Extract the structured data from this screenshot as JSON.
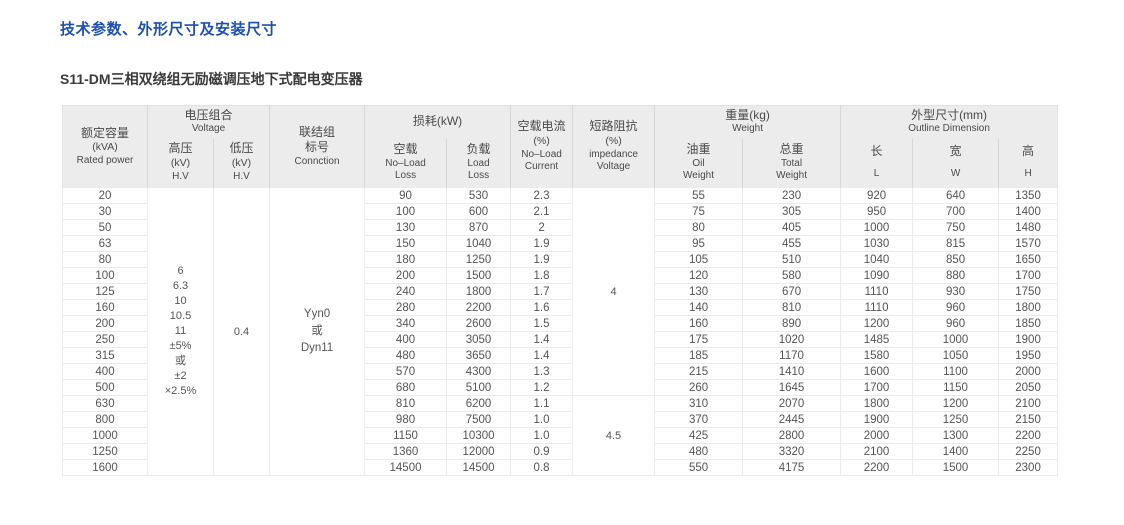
{
  "page": {
    "title": "技术参数、外形尺寸及安装尺寸",
    "subtitle": "S11-DM三相双绕组无励磁调压地下式配电变压器"
  },
  "table": {
    "headers": {
      "rated_power": {
        "zh": "额定容量",
        "unit": "(kVA)",
        "en": "Rated power"
      },
      "voltage_group": {
        "zh": "电压组合",
        "en": "Voltage"
      },
      "hv": {
        "zh": "高压",
        "unit": "(kV)",
        "en": "H.V"
      },
      "lv": {
        "zh": "低压",
        "unit": "(kV)",
        "en": "H.V"
      },
      "connection": {
        "l1": "联结组",
        "l2": "标号",
        "l3": "Connction"
      },
      "loss": {
        "zh": "损耗(kW)"
      },
      "no_load_loss": {
        "zh": "空载",
        "en1": "No–Load",
        "en2": "Loss"
      },
      "load_loss": {
        "zh": "负载",
        "en1": "Load",
        "en2": "Loss"
      },
      "no_load_current": {
        "zh": "空载电流",
        "unit": "(%)",
        "en1": "No–Load",
        "en2": "Current"
      },
      "impedance": {
        "zh": "短路阻抗",
        "unit": "(%)",
        "en1": "impedance",
        "en2": "Voltage"
      },
      "weight": {
        "zh": "重量(kg)",
        "en": "Weight"
      },
      "oil_weight": {
        "zh": "油重",
        "en1": "Oil",
        "en2": "Weight"
      },
      "total_weight": {
        "zh": "总重",
        "en1": "Total",
        "en2": "Weight"
      },
      "dimension": {
        "zh": "外型尺寸(mm)",
        "en": "Outline Dimension"
      },
      "length": {
        "zh": "长",
        "en": "L"
      },
      "width": {
        "zh": "宽",
        "en": "W"
      },
      "height": {
        "zh": "高",
        "en": "H"
      }
    },
    "merged": {
      "hv_lines": [
        "6",
        "6.3",
        "10",
        "10.5",
        "11",
        "±5%",
        "或",
        "±2",
        "×2.5%"
      ],
      "lv": "0.4",
      "connection_lines": [
        "Yyn0",
        "或",
        "Dyn11"
      ],
      "impedance_top": "4",
      "impedance_bottom": "4.5"
    },
    "rows": [
      {
        "kva": "20",
        "nll": "90",
        "ll": "530",
        "nlc": "2.3",
        "oil": "55",
        "total": "230",
        "l": "920",
        "w": "640",
        "h": "1350"
      },
      {
        "kva": "30",
        "nll": "100",
        "ll": "600",
        "nlc": "2.1",
        "oil": "75",
        "total": "305",
        "l": "950",
        "w": "700",
        "h": "1400"
      },
      {
        "kva": "50",
        "nll": "130",
        "ll": "870",
        "nlc": "2",
        "oil": "80",
        "total": "405",
        "l": "1000",
        "w": "750",
        "h": "1480"
      },
      {
        "kva": "63",
        "nll": "150",
        "ll": "1040",
        "nlc": "1.9",
        "oil": "95",
        "total": "455",
        "l": "1030",
        "w": "815",
        "h": "1570"
      },
      {
        "kva": "80",
        "nll": "180",
        "ll": "1250",
        "nlc": "1.9",
        "oil": "105",
        "total": "510",
        "l": "1040",
        "w": "850",
        "h": "1650"
      },
      {
        "kva": "100",
        "nll": "200",
        "ll": "1500",
        "nlc": "1.8",
        "oil": "120",
        "total": "580",
        "l": "1090",
        "w": "880",
        "h": "1700"
      },
      {
        "kva": "125",
        "nll": "240",
        "ll": "1800",
        "nlc": "1.7",
        "oil": "130",
        "total": "670",
        "l": "1110",
        "w": "930",
        "h": "1750"
      },
      {
        "kva": "160",
        "nll": "280",
        "ll": "2200",
        "nlc": "1.6",
        "oil": "140",
        "total": "810",
        "l": "1110",
        "w": "960",
        "h": "1800"
      },
      {
        "kva": "200",
        "nll": "340",
        "ll": "2600",
        "nlc": "1.5",
        "oil": "160",
        "total": "890",
        "l": "1200",
        "w": "960",
        "h": "1850"
      },
      {
        "kva": "250",
        "nll": "400",
        "ll": "3050",
        "nlc": "1.4",
        "oil": "175",
        "total": "1020",
        "l": "1485",
        "w": "1000",
        "h": "1900"
      },
      {
        "kva": "315",
        "nll": "480",
        "ll": "3650",
        "nlc": "1.4",
        "oil": "185",
        "total": "1170",
        "l": "1580",
        "w": "1050",
        "h": "1950"
      },
      {
        "kva": "400",
        "nll": "570",
        "ll": "4300",
        "nlc": "1.3",
        "oil": "215",
        "total": "1410",
        "l": "1600",
        "w": "1100",
        "h": "2000"
      },
      {
        "kva": "500",
        "nll": "680",
        "ll": "5100",
        "nlc": "1.2",
        "oil": "260",
        "total": "1645",
        "l": "1700",
        "w": "1150",
        "h": "2050"
      },
      {
        "kva": "630",
        "nll": "810",
        "ll": "6200",
        "nlc": "1.1",
        "oil": "310",
        "total": "2070",
        "l": "1800",
        "w": "1200",
        "h": "2100"
      },
      {
        "kva": "800",
        "nll": "980",
        "ll": "7500",
        "nlc": "1.0",
        "oil": "370",
        "total": "2445",
        "l": "1900",
        "w": "1250",
        "h": "2150"
      },
      {
        "kva": "1000",
        "nll": "1150",
        "ll": "10300",
        "nlc": "1.0",
        "oil": "425",
        "total": "2800",
        "l": "2000",
        "w": "1300",
        "h": "2200"
      },
      {
        "kva": "1250",
        "nll": "1360",
        "ll": "12000",
        "nlc": "0.9",
        "oil": "480",
        "total": "3320",
        "l": "2100",
        "w": "1400",
        "h": "2250"
      },
      {
        "kva": "1600",
        "nll": "14500",
        "ll": "14500",
        "nlc": "0.8",
        "oil": "550",
        "total": "4175",
        "l": "2200",
        "w": "1500",
        "h": "2300"
      }
    ]
  }
}
